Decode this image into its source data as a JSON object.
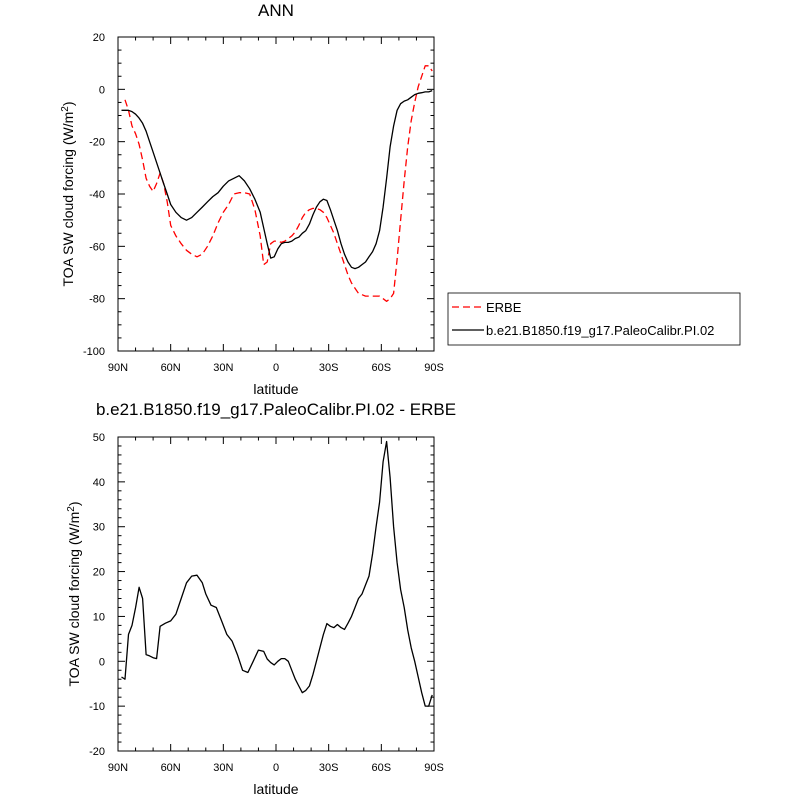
{
  "chart_data": [
    {
      "type": "line",
      "title": "ANN",
      "xlabel": "latitude",
      "ylabel_main": "TOA SW cloud forcing (W/m",
      "ylabel_sup": "2",
      "ylabel_close": ")",
      "xlim": [
        90,
        -90
      ],
      "ylim": [
        -100,
        20
      ],
      "x_ticks": [
        90,
        60,
        30,
        0,
        -30,
        -60,
        -90
      ],
      "x_tick_labels": [
        "90N",
        "60N",
        "30N",
        "0",
        "30S",
        "60S",
        "90S"
      ],
      "y_ticks": [
        20,
        0,
        -20,
        -40,
        -60,
        -80,
        -100
      ],
      "y_tick_labels": [
        "20",
        "0",
        "-20",
        "-40",
        "-60",
        "-80",
        "-100"
      ],
      "legend_position": "right, outside plot",
      "series": [
        {
          "name": "ERBE",
          "color": "#ff0000",
          "dash": "dashed",
          "x": [
            86,
            84,
            82,
            80,
            78,
            76,
            74,
            72,
            70,
            68,
            66,
            64,
            62,
            60,
            57,
            54,
            51,
            48,
            45,
            42,
            39,
            36,
            33,
            30,
            27,
            24,
            21,
            18,
            15,
            12,
            9,
            7,
            5,
            3,
            1,
            -1,
            -3,
            -5,
            -7,
            -9,
            -11,
            -13,
            -15,
            -17,
            -19,
            -21,
            -23,
            -25,
            -27,
            -29,
            -31,
            -33,
            -35,
            -37,
            -39,
            -41,
            -43,
            -45,
            -47,
            -49,
            -51,
            -53,
            -55,
            -57,
            -59,
            -61,
            -63,
            -65,
            -67,
            -69,
            -71,
            -73,
            -75,
            -77,
            -79,
            -81,
            -83,
            -85,
            -87,
            -89
          ],
          "y": [
            -4,
            -8,
            -14,
            -17,
            -21,
            -27,
            -34,
            -37,
            -39,
            -36,
            -32,
            -36,
            -43,
            -52,
            -56,
            -59,
            -61.5,
            -63,
            -64,
            -63,
            -60,
            -56,
            -51,
            -47,
            -44,
            -40,
            -39.5,
            -39.5,
            -40,
            -46,
            -56,
            -67,
            -66,
            -59,
            -58,
            -58,
            -58.5,
            -58,
            -57,
            -56,
            -54.5,
            -52,
            -49,
            -47,
            -46,
            -45.5,
            -45.5,
            -46,
            -47,
            -49,
            -52,
            -55,
            -59,
            -63,
            -67,
            -71,
            -74,
            -76,
            -78,
            -78.5,
            -79,
            -79,
            -79,
            -79,
            -79,
            -80,
            -81,
            -80,
            -78,
            -65,
            -50,
            -35,
            -22,
            -12,
            -5,
            1,
            5,
            9,
            9,
            7
          ]
        },
        {
          "name": "b.e21.B1850.f19_g17.PaleoCalibr.PI.02",
          "color": "#000000",
          "dash": "solid",
          "x": [
            88,
            86,
            84,
            82,
            80,
            78,
            76,
            74,
            72,
            70,
            68,
            66,
            64,
            62,
            60,
            57,
            54,
            51,
            48,
            45,
            42,
            39,
            36,
            33,
            30,
            27,
            24,
            21,
            18,
            15,
            12,
            9,
            7,
            5,
            3,
            1,
            -1,
            -3,
            -5,
            -7,
            -9,
            -11,
            -13,
            -15,
            -17,
            -19,
            -21,
            -23,
            -25,
            -27,
            -29,
            -31,
            -33,
            -35,
            -37,
            -39,
            -41,
            -43,
            -45,
            -47,
            -49,
            -51,
            -53,
            -55,
            -57,
            -59,
            -61,
            -63,
            -65,
            -67,
            -69,
            -71,
            -73,
            -75,
            -77,
            -79,
            -81,
            -83,
            -85,
            -87,
            -89
          ],
          "y": [
            -8,
            -8,
            -8,
            -8.5,
            -9.5,
            -11,
            -13,
            -16,
            -20,
            -24,
            -28,
            -32,
            -36,
            -40,
            -44,
            -47,
            -49,
            -50,
            -49,
            -47,
            -45,
            -43,
            -41,
            -39.5,
            -37,
            -35,
            -34,
            -33,
            -35,
            -38,
            -42,
            -47,
            -53,
            -59,
            -64.5,
            -64,
            -61,
            -59,
            -58.5,
            -58.5,
            -58,
            -57,
            -56.5,
            -55,
            -54,
            -51.5,
            -48,
            -45,
            -43,
            -42,
            -42.5,
            -46,
            -50,
            -54,
            -59,
            -63,
            -66,
            -68,
            -68.5,
            -68,
            -67,
            -66,
            -64,
            -62,
            -59,
            -54,
            -45,
            -34,
            -22,
            -14,
            -8,
            -5.5,
            -4.5,
            -4,
            -3,
            -2,
            -1.5,
            -1.3,
            -1,
            -1,
            -0.5
          ]
        }
      ]
    },
    {
      "type": "line",
      "title": "b.e21.B1850.f19_g17.PaleoCalibr.PI.02 - ERBE",
      "xlabel": "latitude",
      "ylabel_main": "TOA SW cloud forcing (W/m",
      "ylabel_sup": "2",
      "ylabel_close": ")",
      "xlim": [
        90,
        -90
      ],
      "ylim": [
        -20,
        50
      ],
      "x_ticks": [
        90,
        60,
        30,
        0,
        -30,
        -60,
        -90
      ],
      "x_tick_labels": [
        "90N",
        "60N",
        "30N",
        "0",
        "30S",
        "60S",
        "90S"
      ],
      "y_ticks": [
        50,
        40,
        30,
        20,
        10,
        0,
        -10,
        -20
      ],
      "y_tick_labels": [
        "50",
        "40",
        "30",
        "20",
        "10",
        "0",
        "-10",
        "-20"
      ],
      "series": [
        {
          "color": "#000000",
          "dash": "solid",
          "x": [
            88,
            86,
            84,
            82,
            80,
            78,
            76,
            74,
            72,
            70,
            68,
            66,
            63,
            60,
            57,
            54,
            51,
            48,
            45,
            42,
            40,
            37,
            34,
            31,
            28,
            25,
            22,
            19,
            16,
            13,
            10,
            7,
            5,
            3,
            1,
            -1,
            -3,
            -5,
            -7,
            -9,
            -11,
            -13,
            -15,
            -17,
            -19,
            -21,
            -23,
            -25,
            -27,
            -29,
            -31,
            -33,
            -35,
            -37,
            -39,
            -41,
            -43,
            -45,
            -47,
            -49,
            -51,
            -53,
            -55,
            -57,
            -59,
            -61,
            -63,
            -65,
            -67,
            -69,
            -71,
            -73,
            -75,
            -77,
            -79,
            -81,
            -83,
            -85,
            -87,
            -89
          ],
          "y": [
            -3.5,
            -4,
            6,
            8,
            12,
            16.5,
            14,
            1.5,
            1.2,
            0.8,
            0.6,
            7.8,
            8.5,
            9,
            10.5,
            14,
            17.5,
            19,
            19.2,
            17.5,
            15,
            12.5,
            12,
            9,
            6,
            4.5,
            1.5,
            -2,
            -2.5,
            0,
            2.5,
            2.2,
            0.5,
            -0.3,
            -0.8,
            0,
            0.6,
            0.6,
            0,
            -2,
            -4,
            -5.5,
            -7,
            -6.5,
            -5.5,
            -3,
            0,
            3,
            6,
            8.4,
            7.8,
            7.5,
            8.2,
            7.5,
            7.1,
            8.5,
            10,
            12,
            14,
            15,
            17,
            19,
            24,
            30,
            35.5,
            44.5,
            49,
            41,
            30,
            22,
            16,
            12,
            7,
            3,
            0,
            -3.5,
            -7,
            -10,
            -10,
            -7.5
          ]
        }
      ]
    }
  ]
}
